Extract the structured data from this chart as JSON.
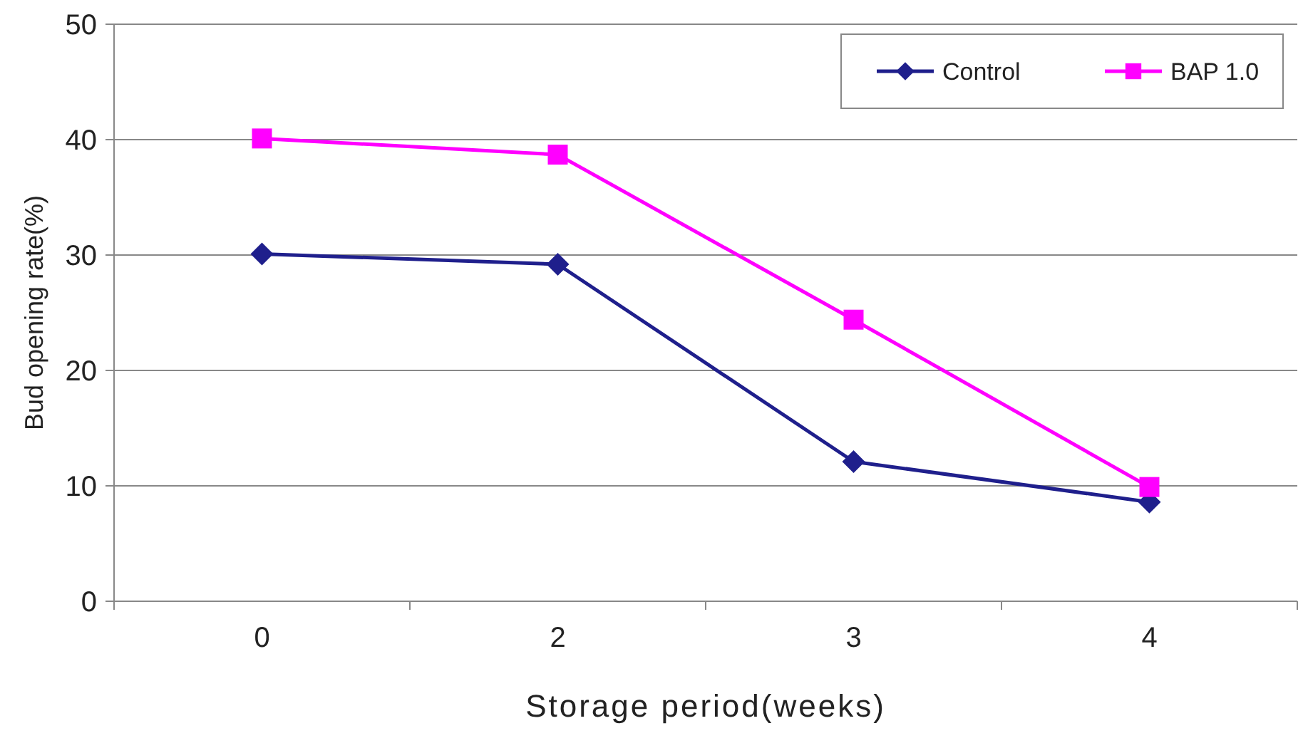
{
  "chart_data": {
    "type": "line",
    "xlabel": "Storage period(weeks)",
    "ylabel": "Bud  opening rate(%)",
    "categories": [
      "0",
      "2",
      "3",
      "4"
    ],
    "series": [
      {
        "name": "Control",
        "color": "#1f1f8c",
        "values": [
          30.1,
          29.2,
          12.1,
          8.6
        ],
        "marker": "diamond"
      },
      {
        "name": "BAP 1.0",
        "color": "#ff00ff",
        "values": [
          40.1,
          38.7,
          24.4,
          9.9
        ],
        "marker": "square"
      }
    ],
    "ylim": [
      0,
      50
    ],
    "yticks": [
      0,
      10,
      20,
      30,
      40,
      50
    ],
    "grid": "y",
    "legend": "top right"
  }
}
